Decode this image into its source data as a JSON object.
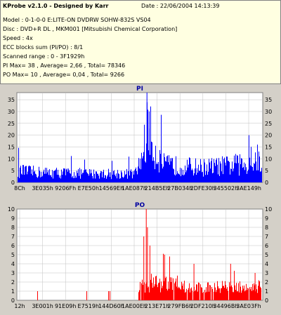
{
  "header": {
    "title": "KProbe v2.1.0 - Designed by Karr",
    "date_label": "Date : 22/06/2004 14:13:39",
    "lines": [
      "Model : 0-1-0-0 E:LITE-ON DVDRW SOHW-832S  VS04",
      "Disc : DVD+R DL , MKM001 [Mitsubishi Chemical Corporation]",
      "Speed : 4x",
      "ECC blocks sum (PI/PO) : 8/1",
      "Scanned range : 0 - 3F1929h",
      "PI Max= 38 , Average= 2,66 , Total= 78346",
      "PO Max= 10 , Average= 0,04 , Total= 9266"
    ]
  },
  "colors": {
    "pi": "#0000ff",
    "po": "#ff0000",
    "plot_bg": "#ffffff",
    "grid": "#c0c0c0"
  },
  "chart_data": [
    {
      "type": "bar",
      "title": "PI",
      "ylim": [
        0,
        38
      ],
      "yticks": [
        0,
        5,
        10,
        15,
        20,
        25,
        30,
        35
      ],
      "xticks": [
        "8Ch",
        "3E035h",
        "9206Fh",
        "E7E50h",
        "14569Eh",
        "1AE087h",
        "214B5Eh",
        "27B034h",
        "2DFE30h",
        "345502h",
        "3AE149h"
      ],
      "profile": [
        {
          "x": 0.0,
          "y": 4.5
        },
        {
          "x": 0.1,
          "y": 4.0
        },
        {
          "x": 0.3,
          "y": 3.5
        },
        {
          "x": 0.48,
          "y": 3.5
        },
        {
          "x": 0.5,
          "y": 8.0
        },
        {
          "x": 0.52,
          "y": 16.0
        },
        {
          "x": 0.535,
          "y": 25.0
        },
        {
          "x": 0.55,
          "y": 14.0
        },
        {
          "x": 0.6,
          "y": 7.0
        },
        {
          "x": 0.75,
          "y": 6.0
        },
        {
          "x": 0.9,
          "y": 7.0
        },
        {
          "x": 1.0,
          "y": 8.0
        }
      ],
      "peaks": [
        {
          "x": 0.528,
          "y": 38
        },
        {
          "x": 0.537,
          "y": 30
        },
        {
          "x": 0.945,
          "y": 20
        },
        {
          "x": 0.98,
          "y": 16
        }
      ]
    },
    {
      "type": "bar",
      "title": "PO",
      "ylim": [
        0,
        10
      ],
      "yticks": [
        0,
        1,
        2,
        3,
        4,
        5,
        6,
        7,
        8,
        9,
        10
      ],
      "xticks": [
        "12h",
        "3E001h",
        "91E09h",
        "E7519h",
        "144D60h",
        "1AE00Eh",
        "213E71h",
        "279FB6h",
        "2DF210h",
        "34496Bh",
        "3AE03Fh"
      ],
      "profile": [
        {
          "x": 0.0,
          "y": 0.1
        },
        {
          "x": 0.48,
          "y": 0.1
        },
        {
          "x": 0.5,
          "y": 1.3
        },
        {
          "x": 0.55,
          "y": 1.8
        },
        {
          "x": 0.7,
          "y": 1.2
        },
        {
          "x": 0.9,
          "y": 1.3
        },
        {
          "x": 1.0,
          "y": 1.4
        }
      ],
      "peaks": [
        {
          "x": 0.525,
          "y": 10
        },
        {
          "x": 0.53,
          "y": 8
        },
        {
          "x": 0.515,
          "y": 7
        },
        {
          "x": 0.54,
          "y": 6
        },
        {
          "x": 0.6,
          "y": 5
        },
        {
          "x": 0.72,
          "y": 4
        },
        {
          "x": 0.87,
          "y": 4
        },
        {
          "x": 0.97,
          "y": 3
        }
      ]
    }
  ]
}
